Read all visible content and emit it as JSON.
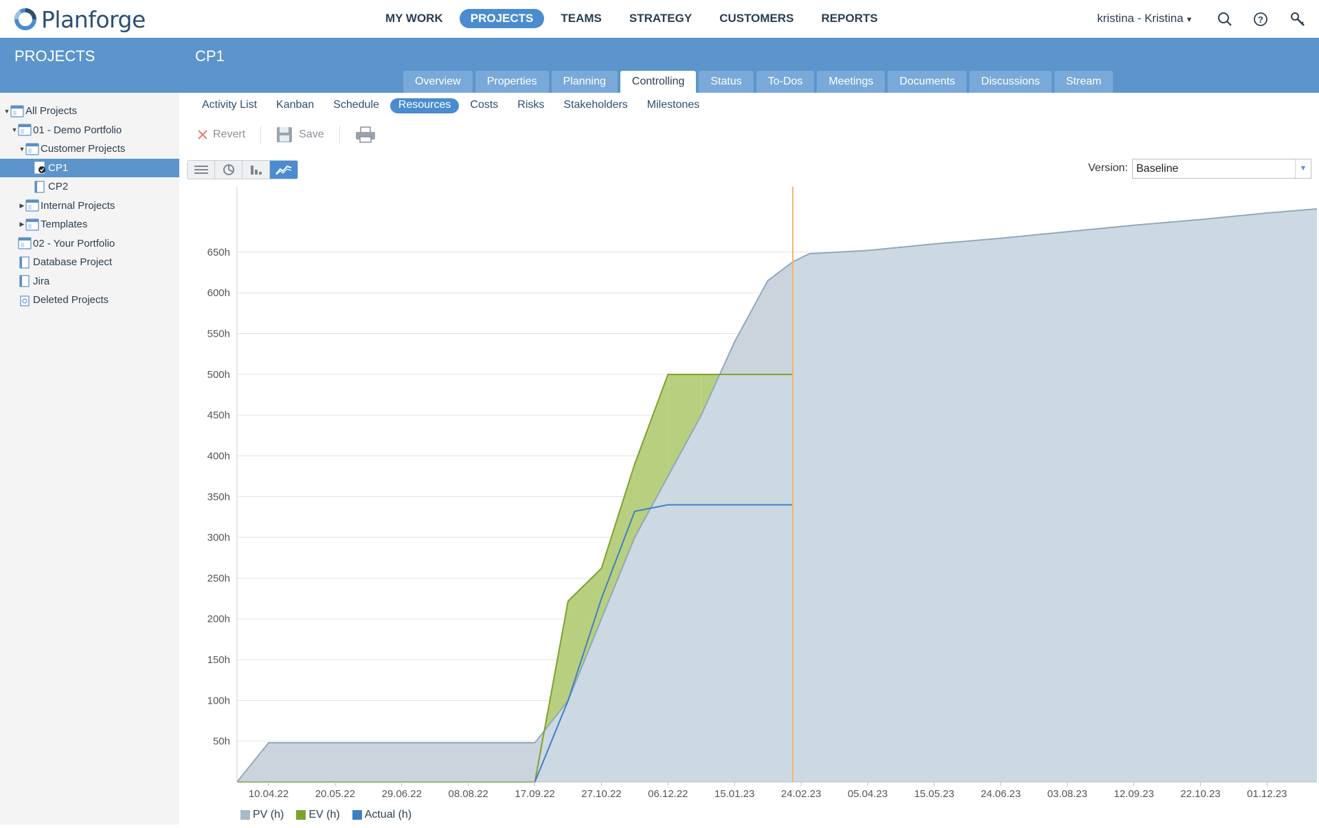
{
  "app": {
    "logo_text": "Planforge"
  },
  "main_nav": [
    {
      "label": "MY WORK",
      "active": false
    },
    {
      "label": "PROJECTS",
      "active": true
    },
    {
      "label": "TEAMS",
      "active": false
    },
    {
      "label": "STRATEGY",
      "active": false
    },
    {
      "label": "CUSTOMERS",
      "active": false
    },
    {
      "label": "REPORTS",
      "active": false
    }
  ],
  "user": {
    "label": "kristina - Kristina"
  },
  "left_panel": {
    "title": "PROJECTS",
    "tree": [
      {
        "label": "All Projects",
        "level": 0,
        "toggle": "▼",
        "icon": "portfolio-icon"
      },
      {
        "label": "01 - Demo Portfolio",
        "level": 1,
        "toggle": "▼",
        "icon": "portfolio-icon"
      },
      {
        "label": "Customer Projects",
        "level": 2,
        "toggle": "▼",
        "icon": "portfolio-icon"
      },
      {
        "label": "CP1",
        "level": 3,
        "toggle": "",
        "icon": "project-checked-icon",
        "selected": true
      },
      {
        "label": "CP2",
        "level": 3,
        "toggle": "",
        "icon": "project-icon"
      },
      {
        "label": "Internal Projects",
        "level": 2,
        "toggle": "▶",
        "icon": "portfolio-icon"
      },
      {
        "label": "Templates",
        "level": 2,
        "toggle": "▶",
        "icon": "portfolio-icon"
      },
      {
        "label": "02 - Your Portfolio",
        "level": 1,
        "toggle": "",
        "icon": "portfolio-icon"
      },
      {
        "label": "Database Project",
        "level": 1,
        "toggle": "",
        "icon": "project-icon"
      },
      {
        "label": "Jira",
        "level": 1,
        "toggle": "",
        "icon": "project-icon"
      },
      {
        "label": "Deleted Projects",
        "level": 1,
        "toggle": "",
        "icon": "trash-icon"
      }
    ]
  },
  "project": {
    "title": "CP1",
    "tabs": [
      {
        "label": "Overview",
        "active": false
      },
      {
        "label": "Properties",
        "active": false
      },
      {
        "label": "Planning",
        "active": false
      },
      {
        "label": "Controlling",
        "active": true
      },
      {
        "label": "Status",
        "active": false
      },
      {
        "label": "To-Dos",
        "active": false
      },
      {
        "label": "Meetings",
        "active": false
      },
      {
        "label": "Documents",
        "active": false
      },
      {
        "label": "Discussions",
        "active": false
      },
      {
        "label": "Stream",
        "active": false
      }
    ],
    "subtabs": [
      {
        "label": "Activity List",
        "active": false
      },
      {
        "label": "Kanban",
        "active": false
      },
      {
        "label": "Schedule",
        "active": false
      },
      {
        "label": "Resources",
        "active": true
      },
      {
        "label": "Costs",
        "active": false
      },
      {
        "label": "Risks",
        "active": false
      },
      {
        "label": "Stakeholders",
        "active": false
      },
      {
        "label": "Milestones",
        "active": false
      }
    ]
  },
  "toolbar": {
    "revert_label": "Revert",
    "save_label": "Save"
  },
  "version": {
    "label": "Version:",
    "value": "Baseline"
  },
  "colors": {
    "accent": "#4a8ccf",
    "header": "#5b95cb",
    "pv_fill": "#c9d7e0",
    "pv_line": "#8fa9bd",
    "ev_line": "#7ba32c",
    "ev_fill_above": "#b8cf7f",
    "ev_fill_below": "#e3a3a3",
    "actual_line": "#3f7fc6",
    "status_line": "#f2b66b"
  },
  "chart_data": {
    "type": "area",
    "x_tick_labels": [
      "10.04.22",
      "20.05.22",
      "29.06.22",
      "08.08.22",
      "17.09.22",
      "27.10.22",
      "06.12.22",
      "15.01.23",
      "24.02.23",
      "05.04.23",
      "15.05.23",
      "24.06.23",
      "03.08.23",
      "12.09.23",
      "22.10.23",
      "01.12.23"
    ],
    "y_tick_labels": [
      "50h",
      "100h",
      "150h",
      "200h",
      "250h",
      "300h",
      "350h",
      "400h",
      "450h",
      "500h",
      "550h",
      "600h",
      "650h"
    ],
    "ylim": [
      0,
      730
    ],
    "xlim": [
      "2022-03-22",
      "2023-12-31"
    ],
    "status_date": "2023-02-19",
    "grid": true,
    "legend_position": "bottom-left",
    "series": [
      {
        "name": "PV (h)",
        "kind": "area",
        "points": [
          [
            "2022-03-22",
            0
          ],
          [
            "2022-04-10",
            48
          ],
          [
            "2022-09-17",
            48
          ],
          [
            "2022-10-07",
            100
          ],
          [
            "2022-10-27",
            200
          ],
          [
            "2022-11-16",
            300
          ],
          [
            "2022-12-06",
            375
          ],
          [
            "2022-12-26",
            450
          ],
          [
            "2023-01-15",
            540
          ],
          [
            "2023-02-04",
            615
          ],
          [
            "2023-02-19",
            638
          ],
          [
            "2023-03-01",
            648
          ],
          [
            "2023-04-05",
            652
          ],
          [
            "2023-05-15",
            660
          ],
          [
            "2023-06-24",
            667
          ],
          [
            "2023-08-03",
            675
          ],
          [
            "2023-09-12",
            683
          ],
          [
            "2023-10-22",
            690
          ],
          [
            "2023-12-01",
            698
          ],
          [
            "2023-12-31",
            703
          ]
        ]
      },
      {
        "name": "EV (h)",
        "kind": "line",
        "points": [
          [
            "2022-03-22",
            0
          ],
          [
            "2022-09-17",
            0
          ],
          [
            "2022-10-07",
            222
          ],
          [
            "2022-10-27",
            262
          ],
          [
            "2022-11-16",
            390
          ],
          [
            "2022-12-06",
            500
          ],
          [
            "2023-02-19",
            500
          ]
        ]
      },
      {
        "name": "Actual (h)",
        "kind": "line",
        "points": [
          [
            "2022-09-17",
            0
          ],
          [
            "2022-10-07",
            100
          ],
          [
            "2022-10-27",
            225
          ],
          [
            "2022-11-16",
            332
          ],
          [
            "2022-12-06",
            340
          ],
          [
            "2023-02-19",
            340
          ]
        ]
      }
    ]
  }
}
